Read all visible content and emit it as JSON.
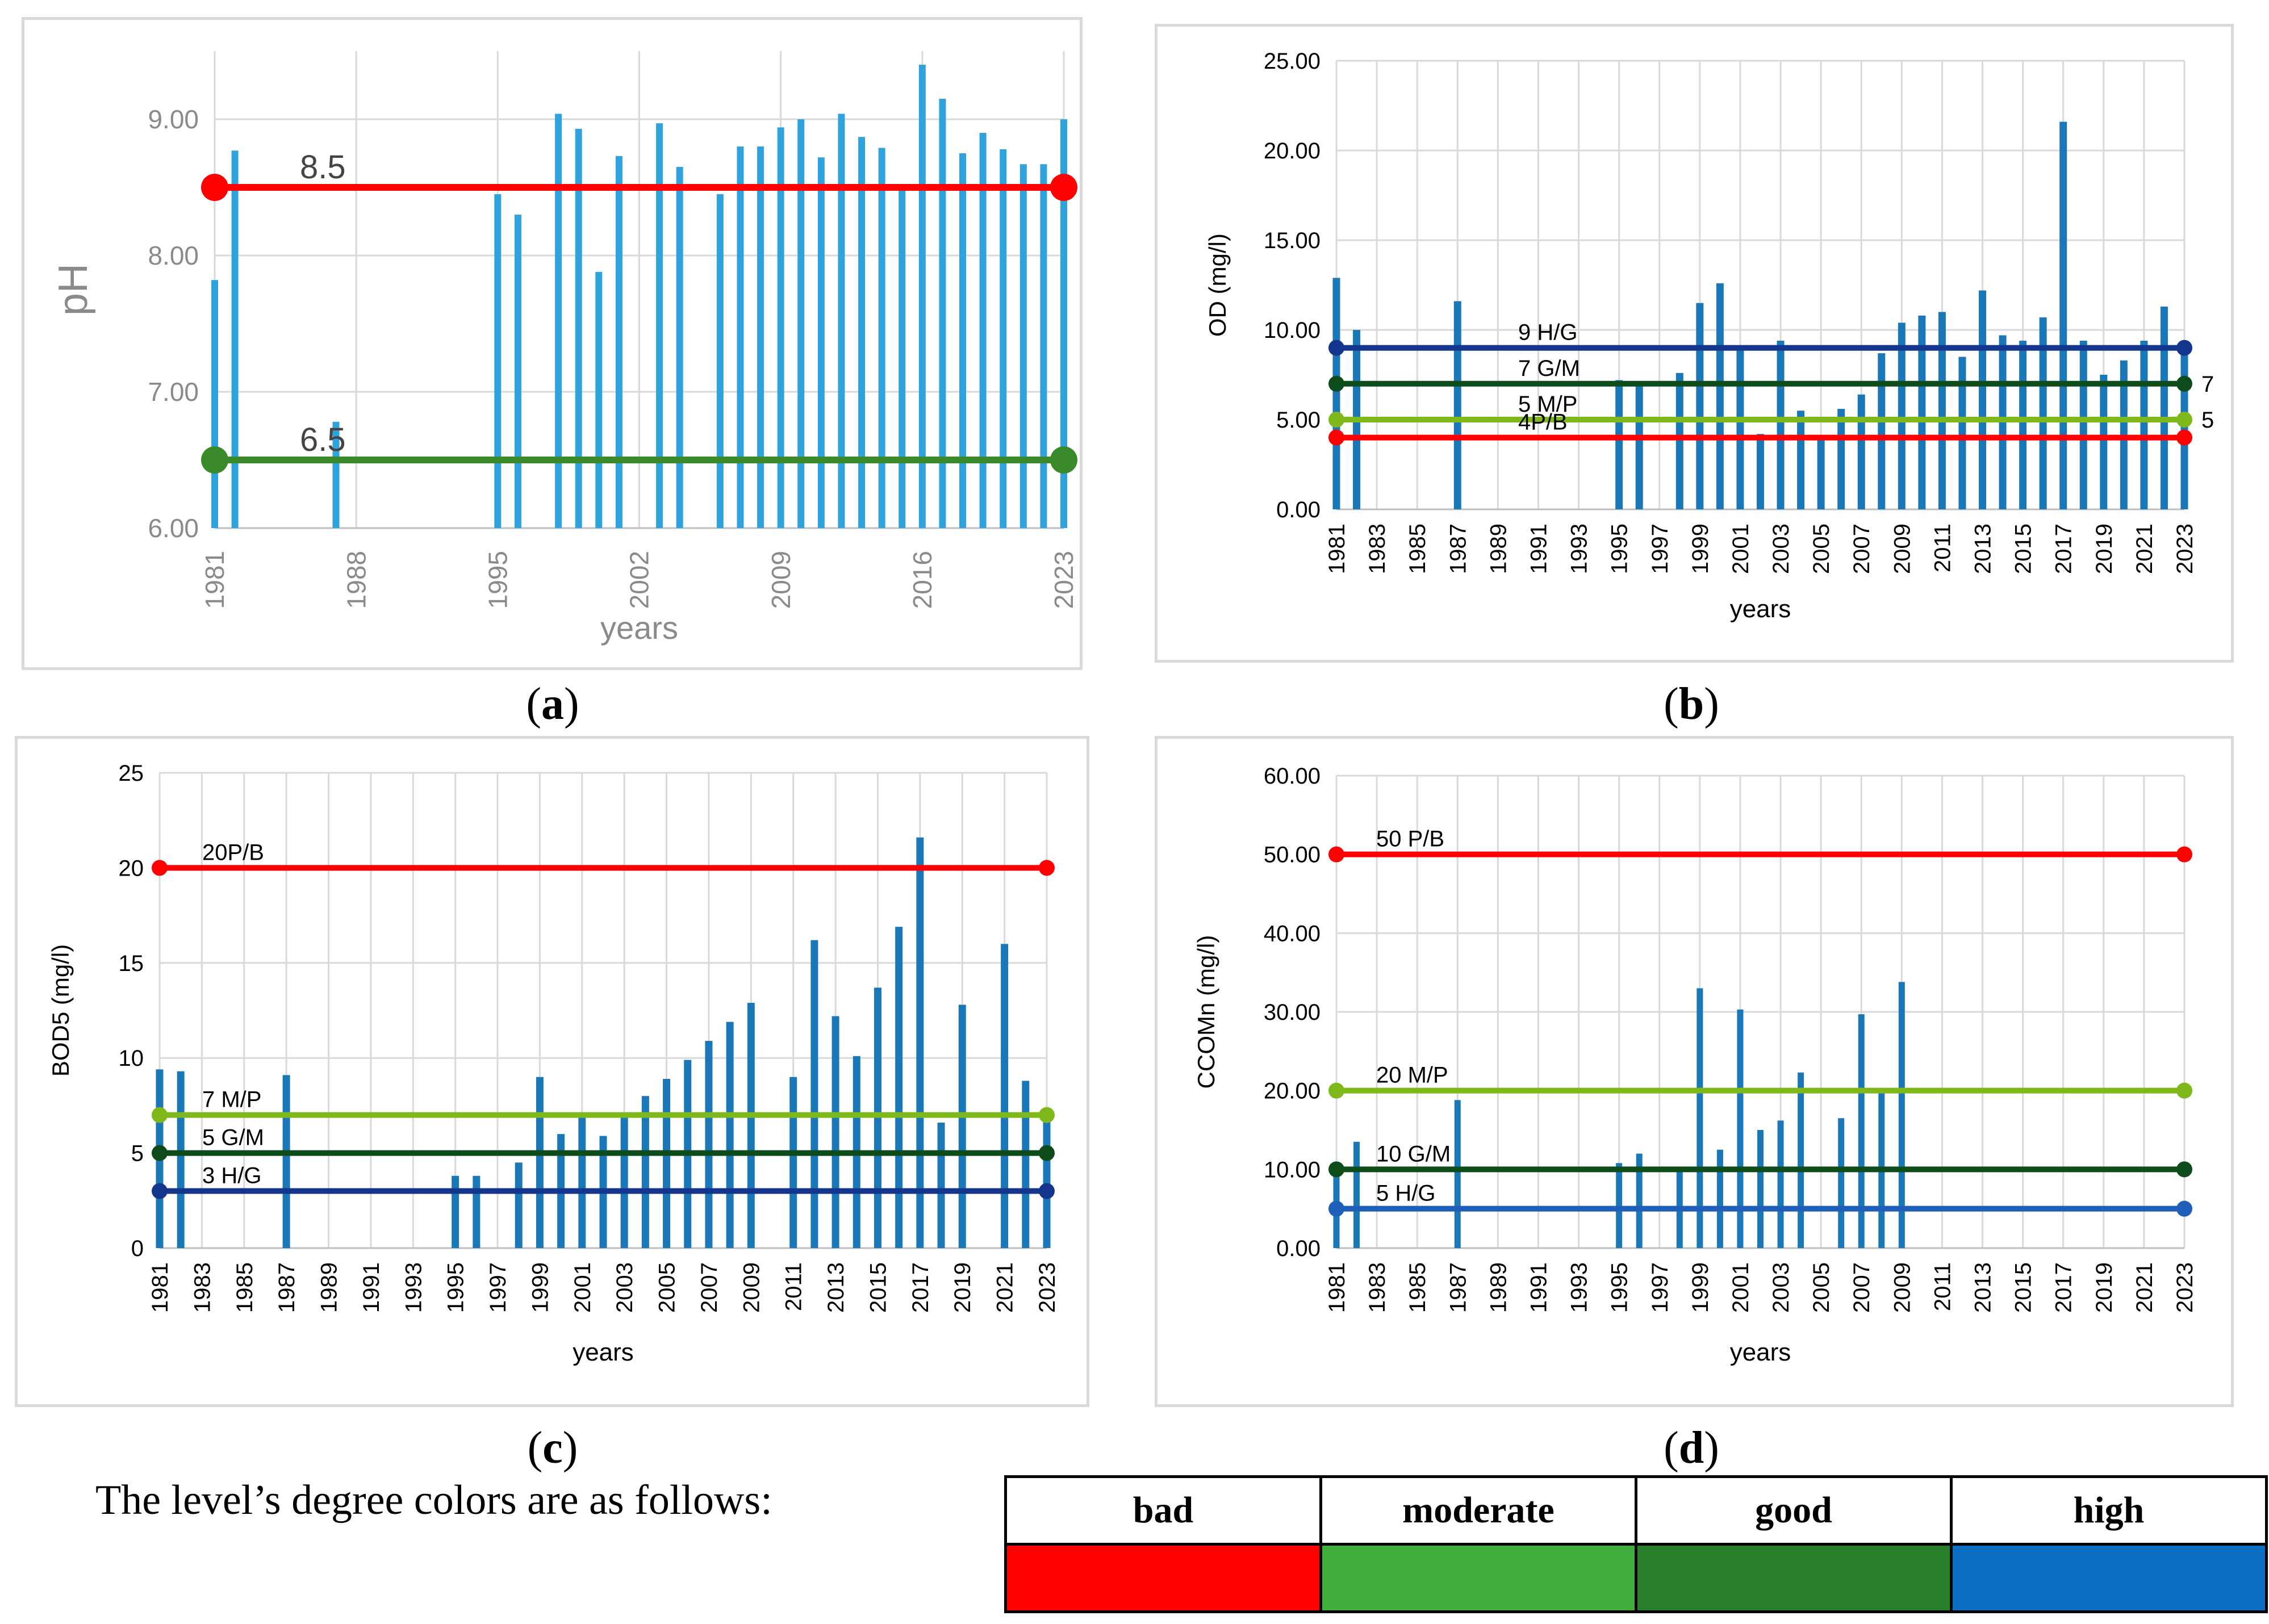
{
  "figure": {
    "panel_labels": [
      "a",
      "b",
      "c",
      "d"
    ],
    "legend_note": "The level’s degree colors are as follows:",
    "legend": [
      {
        "name": "bad",
        "color": "#ff0000"
      },
      {
        "name": "moderate",
        "color": "#3fae3a"
      },
      {
        "name": "good",
        "color": "#277f2b"
      },
      {
        "name": "high",
        "color": "#0a6fc2"
      }
    ]
  },
  "chart_data": [
    {
      "type": "bar",
      "ylabel": "pH",
      "xlabel": "years",
      "ylim": [
        6,
        9.5
      ],
      "yticks": [
        "6.00",
        "7.00",
        "8.00",
        "9.00"
      ],
      "xlim": [
        1981,
        2023
      ],
      "xticks": [
        "1981",
        "1988",
        "1995",
        "2002",
        "2009",
        "2016",
        "2023"
      ],
      "grid": "on",
      "bar_color": "#2ea3dd",
      "years": [
        1981,
        1982,
        1987,
        1995,
        1996,
        1998,
        1999,
        2000,
        2001,
        2003,
        2004,
        2006,
        2007,
        2008,
        2009,
        2010,
        2011,
        2012,
        2013,
        2014,
        2015,
        2016,
        2017,
        2018,
        2019,
        2020,
        2021,
        2022,
        2023
      ],
      "values": [
        7.82,
        8.77,
        6.78,
        8.45,
        8.3,
        9.04,
        8.93,
        7.88,
        8.73,
        8.97,
        8.65,
        8.45,
        8.8,
        8.8,
        8.94,
        9.0,
        8.72,
        9.04,
        8.87,
        8.79,
        8.5,
        9.4,
        9.15,
        8.75,
        8.9,
        8.78,
        8.67,
        8.67,
        9.0
      ],
      "thresholds": [
        {
          "value": 8.5,
          "label": "8.5",
          "color": "#ff0000"
        },
        {
          "value": 6.5,
          "label": "6.5",
          "color": "#3a8a2c"
        }
      ]
    },
    {
      "type": "bar",
      "ylabel": "OD (mg/l)",
      "xlabel": "years",
      "ylim": [
        0,
        25
      ],
      "yticks": [
        "0.00",
        "5.00",
        "10.00",
        "15.00",
        "20.00",
        "25.00"
      ],
      "xlim": [
        1981,
        2023
      ],
      "xticks": [
        "1981",
        "1983",
        "1985",
        "1987",
        "1989",
        "1991",
        "1993",
        "1995",
        "1997",
        "1999",
        "2001",
        "2003",
        "2005",
        "2007",
        "2009",
        "2011",
        "2013",
        "2015",
        "2017",
        "2019",
        "2021",
        "2023"
      ],
      "grid": "on",
      "bar_color": "#1a78b9",
      "years": [
        1981,
        1982,
        1987,
        1995,
        1996,
        1998,
        1999,
        2000,
        2001,
        2002,
        2003,
        2004,
        2005,
        2006,
        2007,
        2008,
        2009,
        2010,
        2011,
        2012,
        2013,
        2014,
        2015,
        2016,
        2017,
        2018,
        2019,
        2020,
        2021,
        2022,
        2023
      ],
      "values": [
        12.9,
        10.0,
        11.6,
        7.2,
        7.0,
        7.6,
        11.5,
        12.6,
        9.0,
        4.2,
        9.4,
        5.5,
        4.0,
        5.6,
        6.4,
        8.7,
        10.4,
        10.8,
        11.0,
        8.5,
        12.2,
        9.7,
        9.4,
        10.7,
        21.6,
        9.4,
        7.5,
        8.3,
        9.4,
        11.3,
        9.0
      ],
      "thresholds": [
        {
          "value": 9,
          "label": "9 H/G",
          "color": "#14358c"
        },
        {
          "value": 7,
          "label": "7 G/M",
          "color": "#0d4b1b",
          "right_label": "7"
        },
        {
          "value": 5,
          "label": "5 M/P",
          "color": "#7fb81b",
          "right_label": "5"
        },
        {
          "value": 4,
          "label": "4P/B",
          "color": "#ff0000"
        }
      ]
    },
    {
      "type": "bar",
      "ylabel": "BOD5 (mg/l)",
      "xlabel": "years",
      "ylim": [
        0,
        25
      ],
      "yticks": [
        "0",
        "5",
        "10",
        "15",
        "20",
        "25"
      ],
      "xlim": [
        1981,
        2023
      ],
      "xticks": [
        "1981",
        "1983",
        "1985",
        "1987",
        "1989",
        "1991",
        "1993",
        "1995",
        "1997",
        "1999",
        "2001",
        "2003",
        "2005",
        "2007",
        "2009",
        "2011",
        "2013",
        "2015",
        "2017",
        "2019",
        "2021",
        "2023"
      ],
      "grid": "on",
      "bar_color": "#1a78b9",
      "years": [
        1981,
        1982,
        1987,
        1995,
        1996,
        1998,
        1999,
        2000,
        2001,
        2002,
        2003,
        2004,
        2005,
        2006,
        2007,
        2008,
        2009,
        2011,
        2012,
        2013,
        2014,
        2015,
        2016,
        2017,
        2018,
        2019,
        2021,
        2022,
        2023
      ],
      "values": [
        9.4,
        9.3,
        9.1,
        3.8,
        3.8,
        4.5,
        9.0,
        6.0,
        6.9,
        5.9,
        6.9,
        8.0,
        8.9,
        9.9,
        10.9,
        11.9,
        12.9,
        9.0,
        16.2,
        12.2,
        10.1,
        13.7,
        16.9,
        21.6,
        6.6,
        12.8,
        16.0,
        8.8,
        7.1
      ],
      "thresholds": [
        {
          "value": 20,
          "label": "20P/B",
          "color": "#ff0000"
        },
        {
          "value": 7,
          "label": "7 M/P",
          "color": "#7fb81b"
        },
        {
          "value": 5,
          "label": "5 G/M",
          "color": "#0d4b1b"
        },
        {
          "value": 3,
          "label": "3 H/G",
          "color": "#14358c"
        }
      ]
    },
    {
      "type": "bar",
      "ylabel": "CCOMn (mg/l)",
      "xlabel": "years",
      "ylim": [
        0,
        60
      ],
      "yticks": [
        "0.00",
        "10.00",
        "20.00",
        "30.00",
        "40.00",
        "50.00",
        "60.00"
      ],
      "xlim": [
        1981,
        2023
      ],
      "xticks": [
        "1981",
        "1983",
        "1985",
        "1987",
        "1989",
        "1991",
        "1993",
        "1995",
        "1997",
        "1999",
        "2001",
        "2003",
        "2005",
        "2007",
        "2009",
        "2011",
        "2013",
        "2015",
        "2017",
        "2019",
        "2021",
        "2023"
      ],
      "grid": "on",
      "bar_color": "#1a78b9",
      "years": [
        1981,
        1982,
        1987,
        1995,
        1996,
        1998,
        1999,
        2000,
        2001,
        2002,
        2003,
        2004,
        2006,
        2007,
        2008,
        2009
      ],
      "values": [
        10.0,
        13.5,
        18.8,
        10.8,
        12.0,
        10.0,
        33.0,
        12.5,
        30.3,
        15.0,
        16.2,
        22.3,
        16.5,
        29.7,
        20.0,
        33.8
      ],
      "thresholds": [
        {
          "value": 50,
          "label": "50 P/B",
          "color": "#ff0000"
        },
        {
          "value": 20,
          "label": "20 M/P",
          "color": "#7fb81b"
        },
        {
          "value": 10,
          "label": "10 G/M",
          "color": "#0d4b1b"
        },
        {
          "value": 5,
          "label": "5 H/G",
          "color": "#1f5fb8"
        }
      ]
    }
  ]
}
